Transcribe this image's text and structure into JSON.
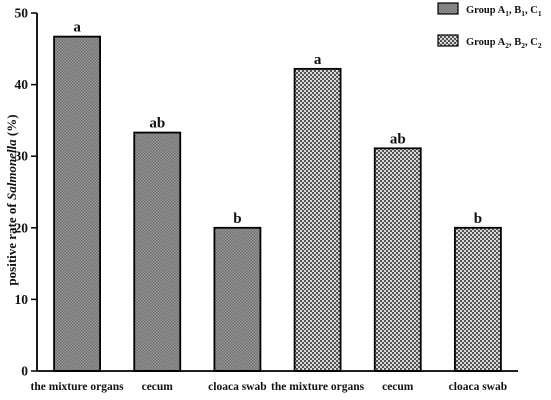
{
  "chart_data": {
    "type": "bar",
    "ylabel_prefix": "positive rate of ",
    "ylabel_italic": "Salmonella",
    "ylabel_suffix": " (%)",
    "ylim": [
      0,
      50
    ],
    "yticks": [
      "0",
      "10",
      "20",
      "30",
      "40",
      "50"
    ],
    "ytick_values": [
      0,
      10,
      20,
      30,
      40,
      50
    ],
    "categories": [
      "the mixture organs",
      "cecum",
      "cloaca swab",
      "the mixture organs",
      "cecum",
      "cloaca swab"
    ],
    "values": [
      46.7,
      33.3,
      20.0,
      42.2,
      31.1,
      20.0
    ],
    "significance": [
      "a",
      "ab",
      "b",
      "a",
      "ab",
      "b"
    ],
    "bar_group": [
      0,
      0,
      0,
      1,
      1,
      1
    ],
    "legend_placement": "top-right",
    "series": [
      {
        "name_parts": [
          "Group A",
          "1",
          ", B",
          "1",
          ", C",
          "1"
        ],
        "pattern": "fine-checker-gray",
        "color": "#8c8c8c"
      },
      {
        "name_parts": [
          "Group A",
          "2",
          ", B",
          "2",
          ", C",
          "2"
        ],
        "pattern": "coarse-checker",
        "color": "#a0a0a0"
      }
    ]
  }
}
